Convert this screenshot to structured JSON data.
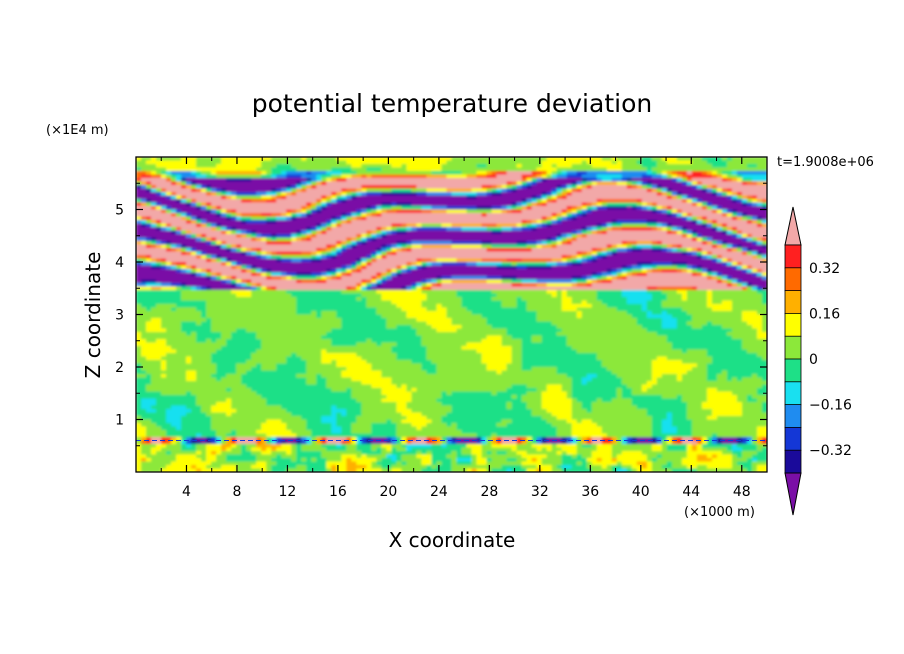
{
  "chart_data": {
    "type": "heatmap",
    "title": "potential temperature deviation",
    "xlabel": "X coordinate",
    "ylabel": "Z coordinate",
    "x_unit": "(×1000 m)",
    "y_unit": "(×1E4 m)",
    "time_label": "t=1.9008e+06",
    "xlim": [
      0,
      50
    ],
    "ylim": [
      0,
      6
    ],
    "x_ticks": [
      4,
      8,
      12,
      16,
      20,
      24,
      28,
      32,
      36,
      40,
      44,
      48
    ],
    "y_ticks": [
      1,
      2,
      3,
      4,
      5
    ],
    "grid": false,
    "colorbar": {
      "placement": "right",
      "labels": [
        "0.32",
        "0.16",
        "0",
        "−0.16",
        "−0.32"
      ],
      "levels": [
        -0.4,
        -0.32,
        -0.24,
        -0.16,
        -0.08,
        0,
        0.08,
        0.16,
        0.24,
        0.32,
        0.4
      ],
      "colors": [
        "#7a0fa6",
        "#1a0a9a",
        "#1437d6",
        "#1f8cf0",
        "#19e0f0",
        "#1ee087",
        "#8ce83a",
        "#ffff00",
        "#ffb000",
        "#ff6a00",
        "#ff2020",
        "#f2a8a8"
      ]
    },
    "bands": [
      {
        "z": [
          5.45,
          5.65
        ],
        "class": "positive"
      },
      {
        "z": [
          5.1,
          5.3
        ],
        "class": "negative"
      },
      {
        "z": [
          4.75,
          5.0
        ],
        "class": "mixed"
      },
      {
        "z": [
          4.3,
          4.55
        ],
        "class": "positive"
      },
      {
        "z": [
          4.05,
          4.3
        ],
        "class": "negative"
      },
      {
        "z": [
          3.85,
          4.05
        ],
        "class": "positive"
      },
      {
        "z": [
          3.6,
          3.85
        ],
        "class": "negative"
      },
      {
        "z": [
          3.45,
          3.6
        ],
        "class": "positive"
      }
    ]
  }
}
